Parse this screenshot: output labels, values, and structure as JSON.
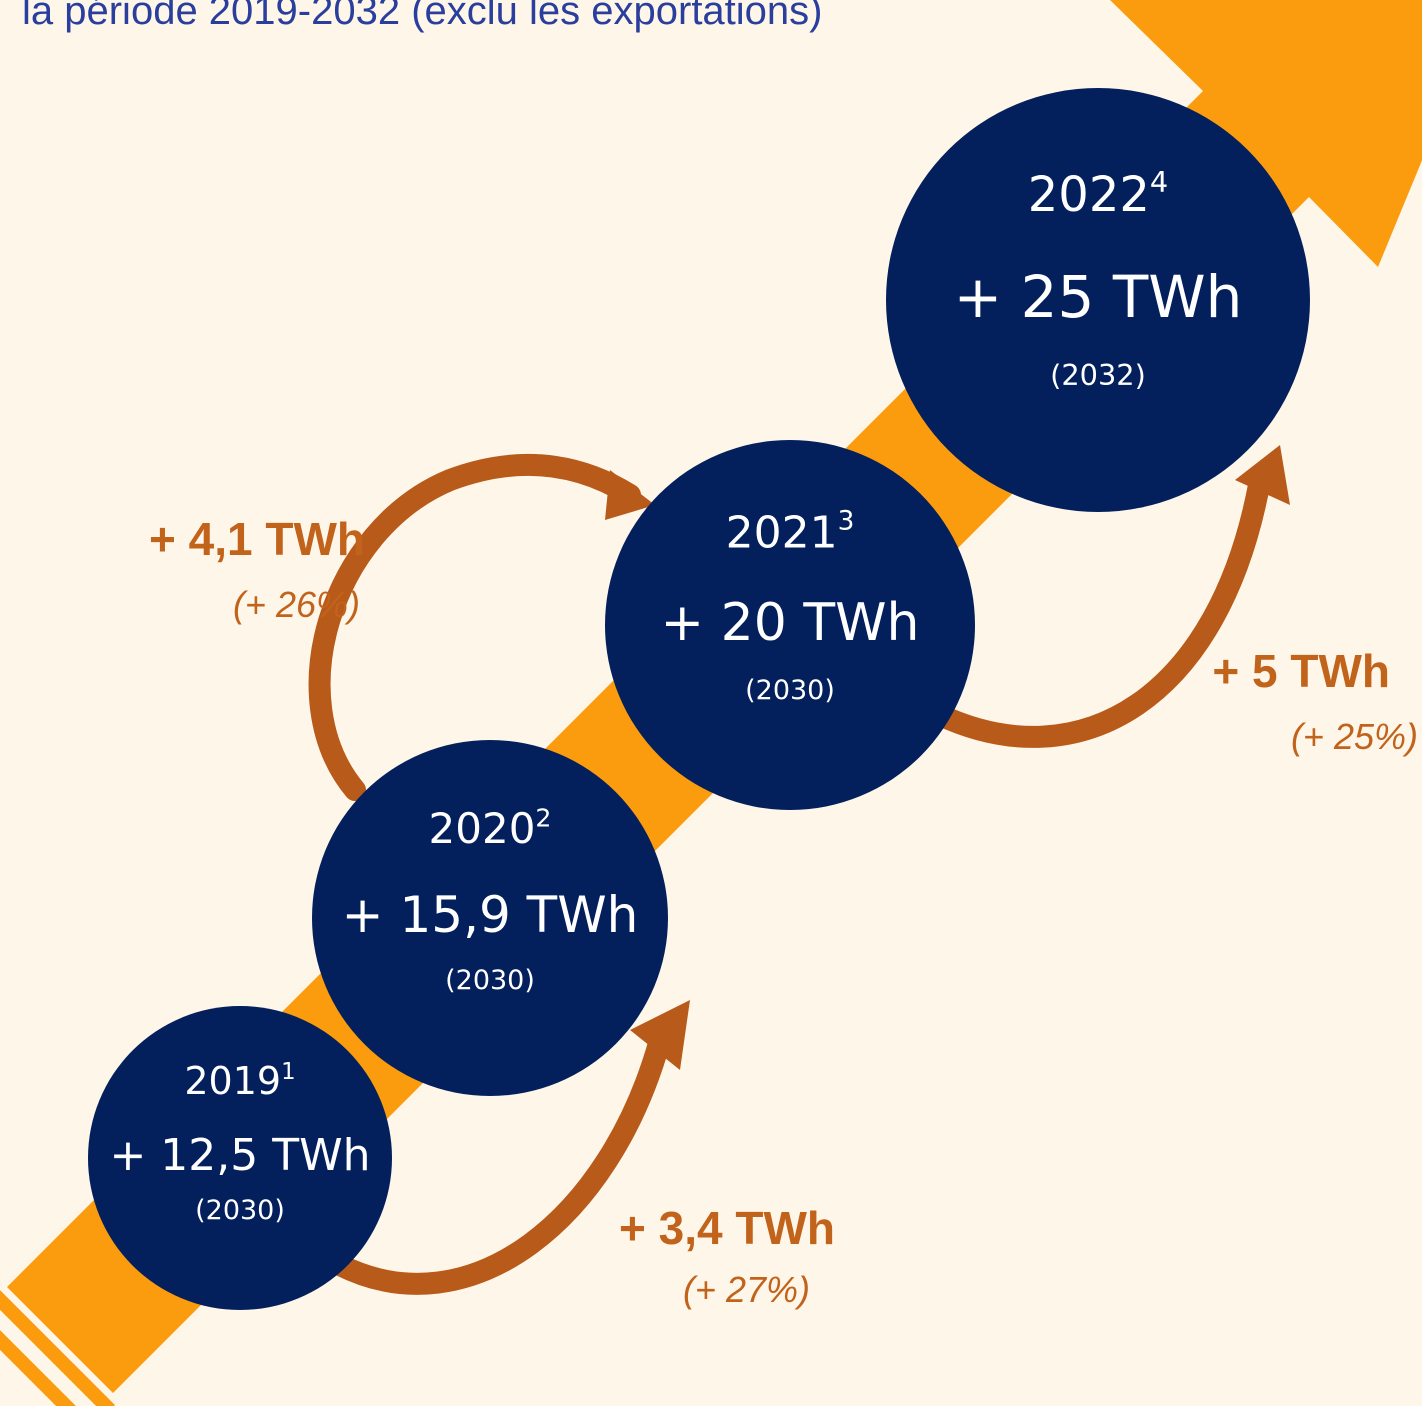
{
  "title": "la période 2019-2032 (exclu les exportations)",
  "nodes": [
    {
      "year": "2019",
      "note": "1",
      "value": "+ 12,5 TWh",
      "horizon": "(2030)"
    },
    {
      "year": "2020",
      "note": "2",
      "value": "+ 15,9 TWh",
      "horizon": "(2030)"
    },
    {
      "year": "2021",
      "note": "3",
      "value": "+ 20 TWh",
      "horizon": "(2030)"
    },
    {
      "year": "2022",
      "note": "4",
      "value": "+ 25 TWh",
      "horizon": "(2032)"
    }
  ],
  "steps": [
    {
      "change": "+ 3,4 TWh",
      "percent": "(+ 27%)"
    },
    {
      "change": "+ 4,1 TWh",
      "percent": "(+ 26%)"
    },
    {
      "change": "+ 5 TWh",
      "percent": "(+ 25%)"
    }
  ]
}
